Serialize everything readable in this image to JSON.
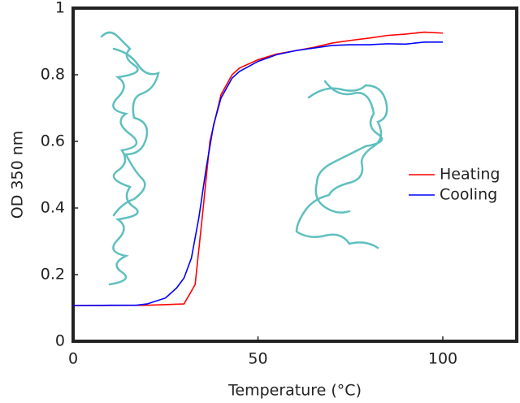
{
  "chart_data": {
    "type": "line",
    "x_label": "Temperature (°C)",
    "y_label": "OD 350 nm",
    "xlim": [
      0,
      120
    ],
    "ylim": [
      0,
      1
    ],
    "xticks": [
      0,
      50,
      100
    ],
    "yticks": [
      0,
      0.2,
      0.4,
      0.6,
      0.8,
      1
    ],
    "legend": "right",
    "series": [
      {
        "name": "Heating",
        "color": "#ff0000",
        "x": [
          0,
          20,
          30,
          33,
          35,
          37,
          40,
          43,
          45,
          50,
          55,
          60,
          65,
          70,
          75,
          80,
          85,
          90,
          95,
          100
        ],
        "values": [
          0.107,
          0.108,
          0.112,
          0.17,
          0.38,
          0.6,
          0.74,
          0.8,
          0.82,
          0.845,
          0.862,
          0.872,
          0.882,
          0.895,
          0.903,
          0.91,
          0.918,
          0.922,
          0.928,
          0.925
        ]
      },
      {
        "name": "Cooling",
        "color": "#0000ff",
        "x": [
          0,
          10,
          17,
          20,
          25,
          28,
          30,
          32,
          34,
          36,
          38,
          40,
          43,
          45,
          50,
          55,
          60,
          65,
          70,
          75,
          80,
          85,
          90,
          95,
          100
        ],
        "values": [
          0.107,
          0.108,
          0.108,
          0.112,
          0.13,
          0.16,
          0.19,
          0.25,
          0.37,
          0.52,
          0.65,
          0.73,
          0.79,
          0.81,
          0.84,
          0.86,
          0.872,
          0.88,
          0.888,
          0.89,
          0.89,
          0.893,
          0.892,
          0.898,
          0.898
        ]
      }
    ]
  }
}
